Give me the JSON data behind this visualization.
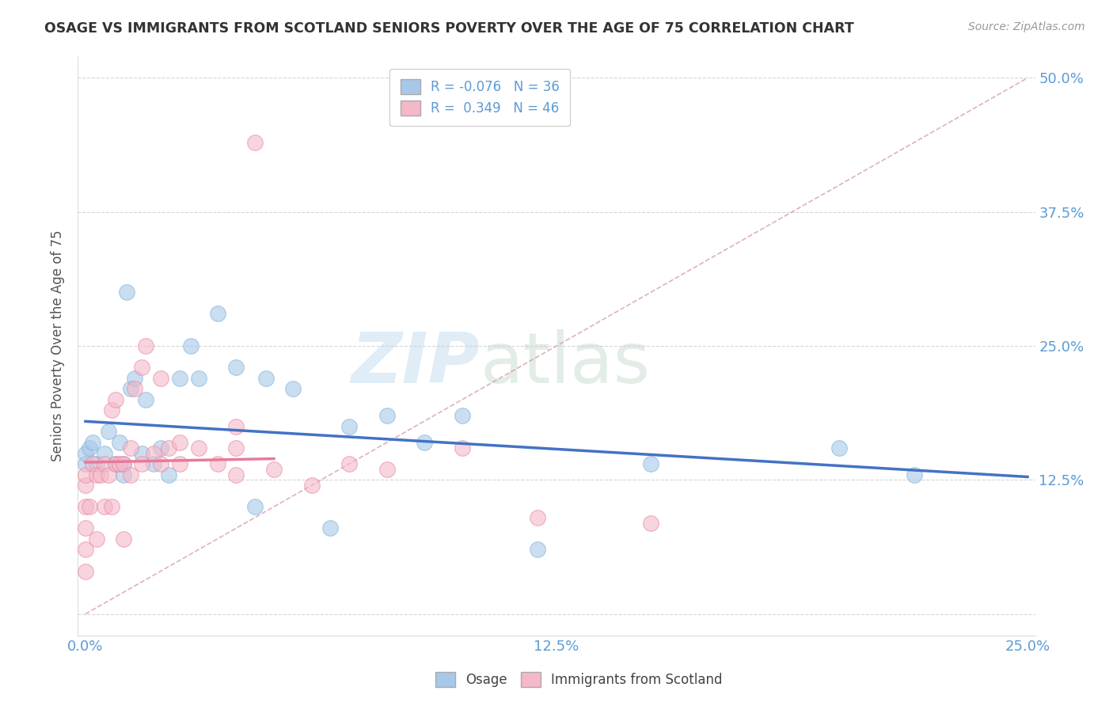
{
  "title": "OSAGE VS IMMIGRANTS FROM SCOTLAND SENIORS POVERTY OVER THE AGE OF 75 CORRELATION CHART",
  "source": "Source: ZipAtlas.com",
  "ylabel": "Seniors Poverty Over the Age of 75",
  "xlabel": "",
  "xlim": [
    -0.002,
    0.252
  ],
  "ylim": [
    -0.02,
    0.52
  ],
  "xticks": [
    0.0,
    0.125,
    0.25
  ],
  "yticks": [
    0.0,
    0.125,
    0.25,
    0.375,
    0.5
  ],
  "xtick_labels": [
    "0.0%",
    "12.5%",
    "25.0%"
  ],
  "ytick_labels_right": [
    "",
    "12.5%",
    "25.0%",
    "37.5%",
    "50.0%"
  ],
  "osage_color": "#a8c8e8",
  "osage_edge_color": "#7bafd4",
  "scotland_color": "#f4b8c8",
  "scotland_edge_color": "#e8839a",
  "osage_r": -0.076,
  "osage_n": 36,
  "scotland_r": 0.349,
  "scotland_n": 46,
  "legend_osage": "Osage",
  "legend_scotland": "Immigrants from Scotland",
  "watermark_zip": "ZIP",
  "watermark_atlas": "atlas",
  "osage_x": [
    0.0,
    0.0,
    0.001,
    0.002,
    0.003,
    0.005,
    0.006,
    0.008,
    0.009,
    0.01,
    0.01,
    0.011,
    0.012,
    0.013,
    0.015,
    0.016,
    0.018,
    0.02,
    0.022,
    0.025,
    0.028,
    0.03,
    0.035,
    0.04,
    0.045,
    0.048,
    0.055,
    0.065,
    0.07,
    0.08,
    0.09,
    0.1,
    0.12,
    0.15,
    0.2,
    0.22
  ],
  "osage_y": [
    0.14,
    0.15,
    0.155,
    0.16,
    0.14,
    0.15,
    0.17,
    0.14,
    0.16,
    0.13,
    0.14,
    0.3,
    0.21,
    0.22,
    0.15,
    0.2,
    0.14,
    0.155,
    0.13,
    0.22,
    0.25,
    0.22,
    0.28,
    0.23,
    0.1,
    0.22,
    0.21,
    0.08,
    0.175,
    0.185,
    0.16,
    0.185,
    0.06,
    0.14,
    0.155,
    0.13
  ],
  "scotland_x": [
    0.0,
    0.0,
    0.0,
    0.0,
    0.0,
    0.0,
    0.001,
    0.002,
    0.003,
    0.003,
    0.004,
    0.005,
    0.005,
    0.006,
    0.007,
    0.007,
    0.008,
    0.008,
    0.009,
    0.01,
    0.01,
    0.012,
    0.012,
    0.013,
    0.015,
    0.015,
    0.016,
    0.018,
    0.02,
    0.02,
    0.022,
    0.025,
    0.025,
    0.03,
    0.035,
    0.04,
    0.04,
    0.04,
    0.045,
    0.05,
    0.06,
    0.07,
    0.08,
    0.1,
    0.12,
    0.15
  ],
  "scotland_y": [
    0.04,
    0.06,
    0.08,
    0.1,
    0.12,
    0.13,
    0.1,
    0.14,
    0.07,
    0.13,
    0.13,
    0.1,
    0.14,
    0.13,
    0.1,
    0.19,
    0.14,
    0.2,
    0.14,
    0.07,
    0.14,
    0.13,
    0.155,
    0.21,
    0.23,
    0.14,
    0.25,
    0.15,
    0.22,
    0.14,
    0.155,
    0.14,
    0.16,
    0.155,
    0.14,
    0.13,
    0.155,
    0.175,
    0.44,
    0.135,
    0.12,
    0.14,
    0.135,
    0.155,
    0.09,
    0.085
  ],
  "background_color": "#ffffff",
  "grid_color": "#cccccc",
  "title_color": "#333333",
  "axis_label_color": "#555555",
  "tick_color": "#5b9bd5",
  "osage_line_color": "#4472c4",
  "scotland_line_color": "#e8799a",
  "diag_color": "#d4a0a8"
}
